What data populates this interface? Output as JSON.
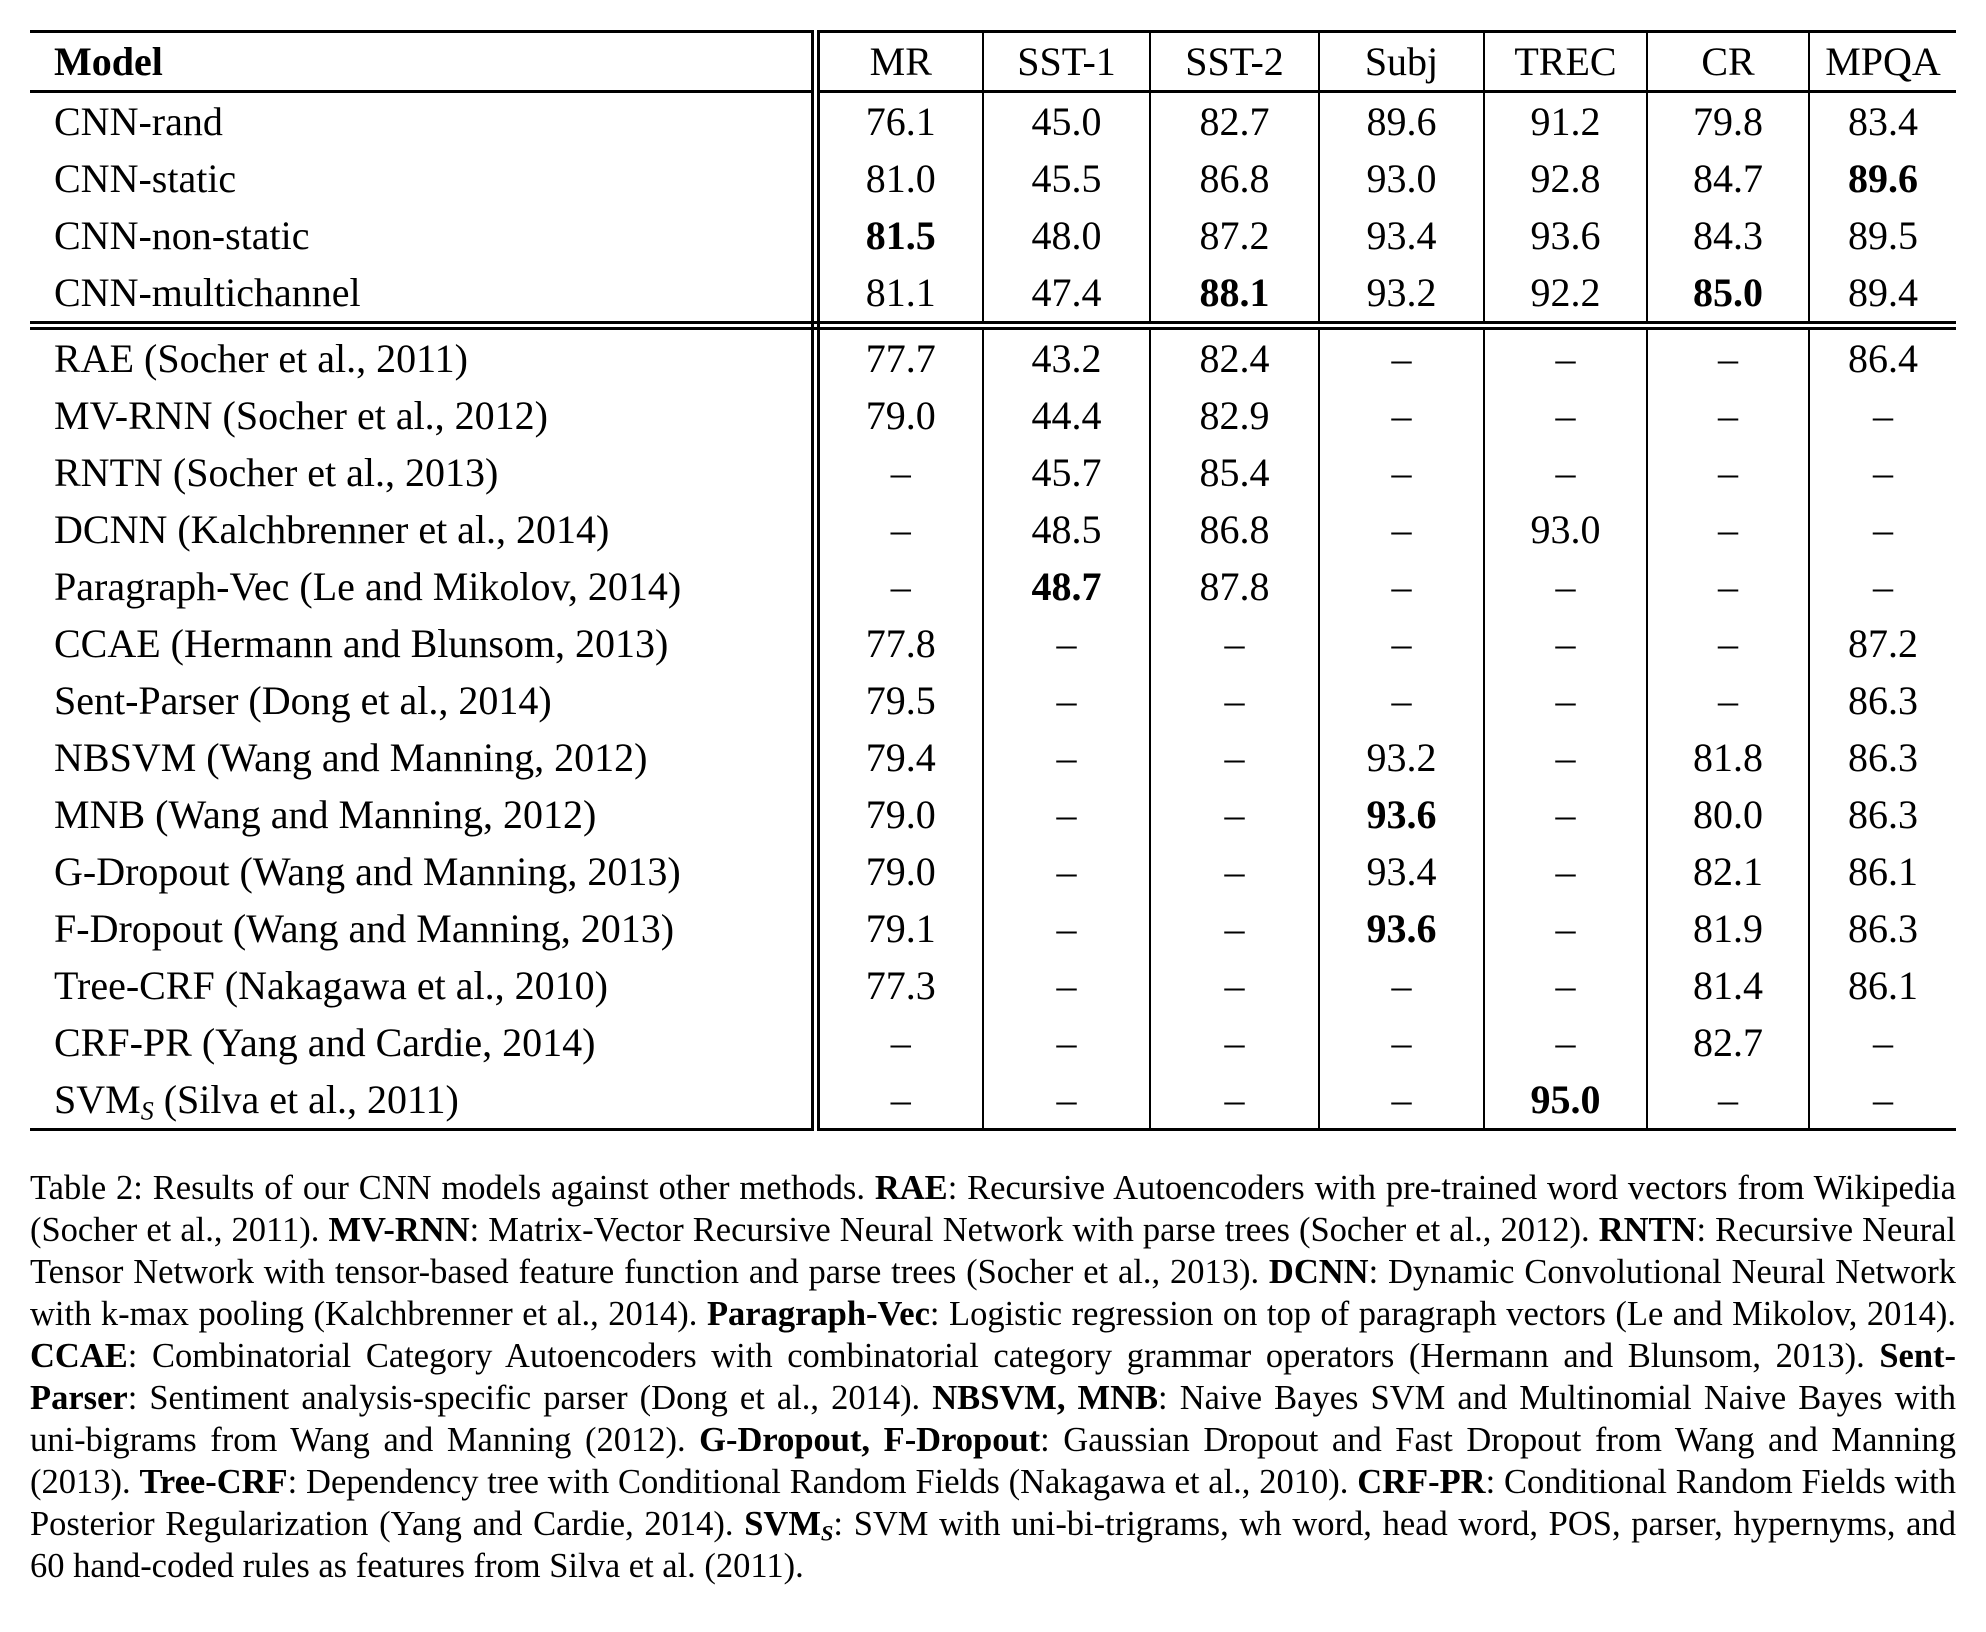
{
  "table": {
    "columns": [
      "Model",
      "MR",
      "SST-1",
      "SST-2",
      "Subj",
      "TREC",
      "CR",
      "MPQA"
    ],
    "missing_marker": "–",
    "groups": [
      {
        "name": "cnn-models",
        "rows": [
          {
            "model": "CNN-rand",
            "values": [
              {
                "t": "76.1"
              },
              {
                "t": "45.0"
              },
              {
                "t": "82.7"
              },
              {
                "t": "89.6"
              },
              {
                "t": "91.2"
              },
              {
                "t": "79.8"
              },
              {
                "t": "83.4"
              }
            ]
          },
          {
            "model": "CNN-static",
            "values": [
              {
                "t": "81.0"
              },
              {
                "t": "45.5"
              },
              {
                "t": "86.8"
              },
              {
                "t": "93.0"
              },
              {
                "t": "92.8"
              },
              {
                "t": "84.7"
              },
              {
                "t": "89.6",
                "b": true
              }
            ]
          },
          {
            "model": "CNN-non-static",
            "values": [
              {
                "t": "81.5",
                "b": true
              },
              {
                "t": "48.0"
              },
              {
                "t": "87.2"
              },
              {
                "t": "93.4"
              },
              {
                "t": "93.6"
              },
              {
                "t": "84.3"
              },
              {
                "t": "89.5"
              }
            ]
          },
          {
            "model": "CNN-multichannel",
            "values": [
              {
                "t": "81.1"
              },
              {
                "t": "47.4"
              },
              {
                "t": "88.1",
                "b": true
              },
              {
                "t": "93.2"
              },
              {
                "t": "92.2"
              },
              {
                "t": "85.0",
                "b": true
              },
              {
                "t": "89.4"
              }
            ]
          }
        ]
      },
      {
        "name": "other-methods",
        "rows": [
          {
            "model": "RAE (Socher et al., 2011)",
            "values": [
              {
                "t": "77.7"
              },
              {
                "t": "43.2"
              },
              {
                "t": "82.4"
              },
              {
                "t": "–"
              },
              {
                "t": "–"
              },
              {
                "t": "–"
              },
              {
                "t": "86.4"
              }
            ]
          },
          {
            "model": "MV-RNN (Socher et al., 2012)",
            "values": [
              {
                "t": "79.0"
              },
              {
                "t": "44.4"
              },
              {
                "t": "82.9"
              },
              {
                "t": "–"
              },
              {
                "t": "–"
              },
              {
                "t": "–"
              },
              {
                "t": "–"
              }
            ]
          },
          {
            "model": "RNTN (Socher et al., 2013)",
            "values": [
              {
                "t": "–"
              },
              {
                "t": "45.7"
              },
              {
                "t": "85.4"
              },
              {
                "t": "–"
              },
              {
                "t": "–"
              },
              {
                "t": "–"
              },
              {
                "t": "–"
              }
            ]
          },
          {
            "model": "DCNN (Kalchbrenner et al., 2014)",
            "values": [
              {
                "t": "–"
              },
              {
                "t": "48.5"
              },
              {
                "t": "86.8"
              },
              {
                "t": "–"
              },
              {
                "t": "93.0"
              },
              {
                "t": "–"
              },
              {
                "t": "–"
              }
            ]
          },
          {
            "model": "Paragraph-Vec (Le and Mikolov, 2014)",
            "values": [
              {
                "t": "–"
              },
              {
                "t": "48.7",
                "b": true
              },
              {
                "t": "87.8"
              },
              {
                "t": "–"
              },
              {
                "t": "–"
              },
              {
                "t": "–"
              },
              {
                "t": "–"
              }
            ]
          },
          {
            "model": "CCAE (Hermann and Blunsom, 2013)",
            "values": [
              {
                "t": "77.8"
              },
              {
                "t": "–"
              },
              {
                "t": "–"
              },
              {
                "t": "–"
              },
              {
                "t": "–"
              },
              {
                "t": "–"
              },
              {
                "t": "87.2"
              }
            ]
          },
          {
            "model": "Sent-Parser (Dong et al., 2014)",
            "values": [
              {
                "t": "79.5"
              },
              {
                "t": "–"
              },
              {
                "t": "–"
              },
              {
                "t": "–"
              },
              {
                "t": "–"
              },
              {
                "t": "–"
              },
              {
                "t": "86.3"
              }
            ]
          },
          {
            "model": "NBSVM (Wang and Manning, 2012)",
            "values": [
              {
                "t": "79.4"
              },
              {
                "t": "–"
              },
              {
                "t": "–"
              },
              {
                "t": "93.2"
              },
              {
                "t": "–"
              },
              {
                "t": "81.8"
              },
              {
                "t": "86.3"
              }
            ]
          },
          {
            "model": "MNB (Wang and Manning, 2012)",
            "values": [
              {
                "t": "79.0"
              },
              {
                "t": "–"
              },
              {
                "t": "–"
              },
              {
                "t": "93.6",
                "b": true
              },
              {
                "t": "–"
              },
              {
                "t": "80.0"
              },
              {
                "t": "86.3"
              }
            ]
          },
          {
            "model": "G-Dropout (Wang and Manning, 2013)",
            "values": [
              {
                "t": "79.0"
              },
              {
                "t": "–"
              },
              {
                "t": "–"
              },
              {
                "t": "93.4"
              },
              {
                "t": "–"
              },
              {
                "t": "82.1"
              },
              {
                "t": "86.1"
              }
            ]
          },
          {
            "model": "F-Dropout (Wang and Manning, 2013)",
            "values": [
              {
                "t": "79.1"
              },
              {
                "t": "–"
              },
              {
                "t": "–"
              },
              {
                "t": "93.6",
                "b": true
              },
              {
                "t": "–"
              },
              {
                "t": "81.9"
              },
              {
                "t": "86.3"
              }
            ]
          },
          {
            "model": "Tree-CRF (Nakagawa et al., 2010)",
            "values": [
              {
                "t": "77.3"
              },
              {
                "t": "–"
              },
              {
                "t": "–"
              },
              {
                "t": "–"
              },
              {
                "t": "–"
              },
              {
                "t": "81.4"
              },
              {
                "t": "86.1"
              }
            ]
          },
          {
            "model": "CRF-PR (Yang and Cardie, 2014)",
            "values": [
              {
                "t": "–"
              },
              {
                "t": "–"
              },
              {
                "t": "–"
              },
              {
                "t": "–"
              },
              {
                "t": "–"
              },
              {
                "t": "82.7"
              },
              {
                "t": "–"
              }
            ]
          },
          {
            "model": "SVM",
            "model_sub": "S",
            "model_rest": " (Silva et al., 2011)",
            "values": [
              {
                "t": "–"
              },
              {
                "t": "–"
              },
              {
                "t": "–"
              },
              {
                "t": "–"
              },
              {
                "t": "95.0",
                "b": true
              },
              {
                "t": "–"
              },
              {
                "t": "–"
              }
            ]
          }
        ]
      }
    ]
  },
  "caption": {
    "segments": [
      {
        "text": "Table 2: Results of our CNN models against other methods. ",
        "bold": false
      },
      {
        "text": "RAE",
        "bold": true
      },
      {
        "text": ": Recursive Autoencoders with pre-trained word vectors from Wikipedia (Socher et al., 2011). ",
        "bold": false
      },
      {
        "text": "MV-RNN",
        "bold": true
      },
      {
        "text": ": Matrix-Vector Recursive Neural Network with parse trees (Socher et al., 2012). ",
        "bold": false
      },
      {
        "text": "RNTN",
        "bold": true
      },
      {
        "text": ": Recursive Neural Tensor Network with tensor-based feature function and parse trees (Socher et al., 2013). ",
        "bold": false
      },
      {
        "text": "DCNN",
        "bold": true
      },
      {
        "text": ": Dynamic Convolutional Neural Network with k-max pooling (Kalchbrenner et al., 2014). ",
        "bold": false
      },
      {
        "text": "Paragraph-Vec",
        "bold": true
      },
      {
        "text": ": Logistic regression on top of paragraph vectors (Le and Mikolov, 2014). ",
        "bold": false
      },
      {
        "text": "CCAE",
        "bold": true
      },
      {
        "text": ": Combinatorial Category Autoencoders with combinatorial category grammar operators (Hermann and Blunsom, 2013). ",
        "bold": false
      },
      {
        "text": "Sent-Parser",
        "bold": true
      },
      {
        "text": ": Sentiment analysis-specific parser (Dong et al., 2014). ",
        "bold": false
      },
      {
        "text": "NBSVM, MNB",
        "bold": true
      },
      {
        "text": ": Naive Bayes SVM and Multinomial Naive Bayes with uni-bigrams from Wang and Manning (2012). ",
        "bold": false
      },
      {
        "text": "G-Dropout, F-Dropout",
        "bold": true
      },
      {
        "text": ": Gaussian Dropout and Fast Dropout from Wang and Manning (2013). ",
        "bold": false
      },
      {
        "text": "Tree-CRF",
        "bold": true
      },
      {
        "text": ": Dependency tree with Conditional Random Fields (Nakagawa et al., 2010). ",
        "bold": false
      },
      {
        "text": "CRF-PR",
        "bold": true
      },
      {
        "text": ": Conditional Random Fields with Posterior Regularization (Yang and Cardie, 2014). ",
        "bold": false
      },
      {
        "text": "SVM",
        "bold": true,
        "sub": "S"
      },
      {
        "text": ": SVM with uni-bi-trigrams, wh word, head word, POS, parser, hypernyms, and 60 hand-coded rules as features from Silva et al. (2011).",
        "bold": false
      }
    ]
  }
}
